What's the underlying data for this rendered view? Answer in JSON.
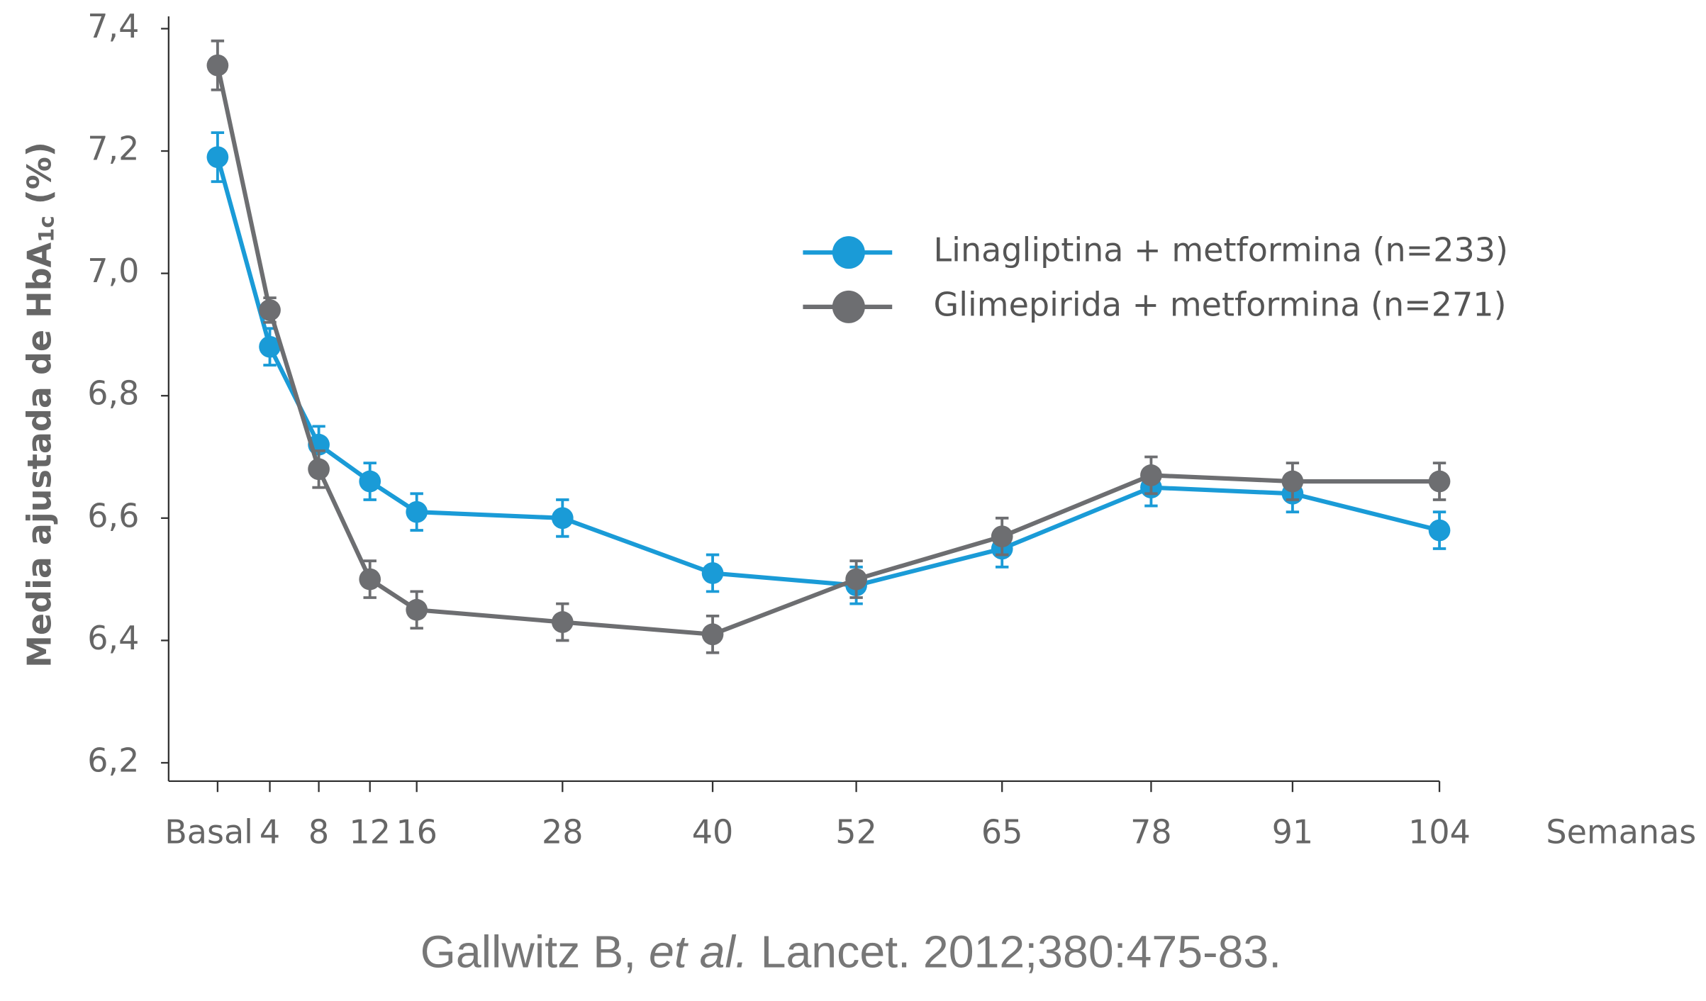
{
  "chart_data": {
    "type": "line",
    "y_label": {
      "main": "Media ajustada de HbA",
      "sub": "1c",
      "unit": "(%)"
    },
    "x_label": "Semanas",
    "categories": [
      "Basal",
      "4",
      "8",
      "12",
      "16",
      "28",
      "40",
      "52",
      "65",
      "78",
      "91",
      "104"
    ],
    "series": [
      {
        "name": "Linagliptina + metformina (n=233)",
        "color": "#1a9bd7",
        "values": [
          7.19,
          6.88,
          6.72,
          6.66,
          6.61,
          6.6,
          6.51,
          6.49,
          6.55,
          6.65,
          6.64,
          6.58
        ],
        "errors": [
          0.04,
          0.03,
          0.03,
          0.03,
          0.03,
          0.03,
          0.03,
          0.03,
          0.03,
          0.03,
          0.03,
          0.03
        ]
      },
      {
        "name": "Glimepirida + metformina (n=271)",
        "color": "#6d6e71",
        "values": [
          7.34,
          6.94,
          6.68,
          6.5,
          6.45,
          6.43,
          6.41,
          6.5,
          6.57,
          6.67,
          6.66,
          6.66
        ],
        "errors": [
          0.04,
          0.02,
          0.03,
          0.03,
          0.03,
          0.03,
          0.03,
          0.03,
          0.03,
          0.03,
          0.03,
          0.03
        ]
      }
    ],
    "ylim": [
      6.17,
      7.42
    ],
    "yticks": [
      {
        "value": 6.2,
        "label": "6,2"
      },
      {
        "value": 6.4,
        "label": "6,4"
      },
      {
        "value": 6.6,
        "label": "6,6"
      },
      {
        "value": 6.8,
        "label": "6,8"
      },
      {
        "value": 7.0,
        "label": "7,0"
      },
      {
        "value": 7.2,
        "label": "7,2"
      },
      {
        "value": 7.4,
        "label": "7,4"
      }
    ],
    "source": [
      "Gallwitz B, ",
      "et al.",
      " Lancet. 2012;380:475-83."
    ]
  }
}
